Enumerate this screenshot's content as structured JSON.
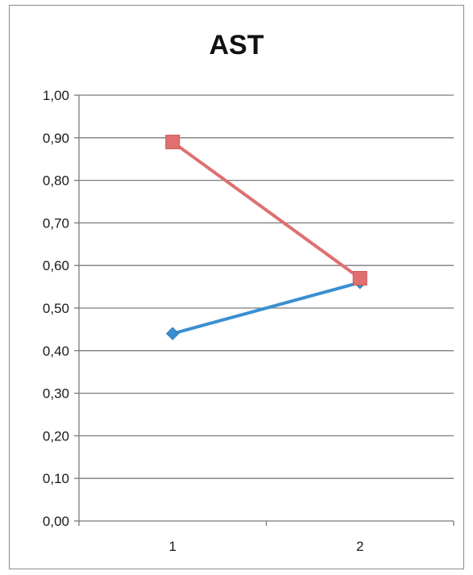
{
  "chart_data": {
    "type": "line",
    "title": "AST",
    "categories": [
      "1",
      "2"
    ],
    "series": [
      {
        "values": [
          0.44,
          0.56
        ],
        "color": "#3a8fd0",
        "marker": "diamond"
      },
      {
        "values": [
          0.89,
          0.57
        ],
        "color": "#e07070",
        "marker": "square"
      }
    ],
    "ylim": [
      0,
      1
    ],
    "yticks": [
      "0,00",
      "0,10",
      "0,20",
      "0,30",
      "0,40",
      "0,50",
      "0,60",
      "0,70",
      "0,80",
      "0,90",
      "1,00"
    ],
    "grid": true,
    "legend": "none"
  }
}
